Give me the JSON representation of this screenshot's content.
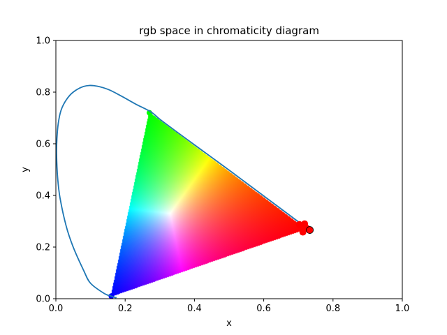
{
  "chart_data": {
    "type": "scatter",
    "title": "rgb space in chromaticity diagram",
    "xlabel": "x",
    "ylabel": "y",
    "xlim": [
      0.0,
      1.0
    ],
    "ylim": [
      0.0,
      1.0
    ],
    "xticks": [
      "0.0",
      "0.2",
      "0.4",
      "0.6",
      "0.8",
      "1.0"
    ],
    "yticks": [
      "0.0",
      "0.2",
      "0.4",
      "0.6",
      "0.8",
      "1.0"
    ],
    "grid": false,
    "legend": "none",
    "spectral_locus": {
      "color": "#1f77b4",
      "x": [
        0.735,
        0.7,
        0.65,
        0.6,
        0.55,
        0.5,
        0.45,
        0.4,
        0.35,
        0.3,
        0.275,
        0.23,
        0.19,
        0.15,
        0.11,
        0.08,
        0.05,
        0.03,
        0.015,
        0.007,
        0.003,
        0.002,
        0.005,
        0.012,
        0.03,
        0.05,
        0.08,
        0.1,
        0.14,
        0.16,
        0.17,
        0.172,
        0.175
      ],
      "y": [
        0.265,
        0.298,
        0.348,
        0.398,
        0.448,
        0.498,
        0.547,
        0.596,
        0.645,
        0.695,
        0.723,
        0.754,
        0.784,
        0.811,
        0.825,
        0.822,
        0.8,
        0.77,
        0.73,
        0.68,
        0.62,
        0.56,
        0.47,
        0.39,
        0.28,
        0.2,
        0.11,
        0.06,
        0.02,
        0.01,
        0.005,
        0.004,
        0.005
      ]
    },
    "gamut_triangle": {
      "red": [
        0.72,
        0.27
      ],
      "green": [
        0.27,
        0.72
      ],
      "blue": [
        0.16,
        0.01
      ],
      "white": [
        0.33,
        0.33
      ]
    },
    "red_points": {
      "color": "#ff0000",
      "x": [
        0.725,
        0.733,
        0.713,
        0.703,
        0.718
      ],
      "y": [
        0.272,
        0.266,
        0.258,
        0.287,
        0.29
      ]
    }
  }
}
